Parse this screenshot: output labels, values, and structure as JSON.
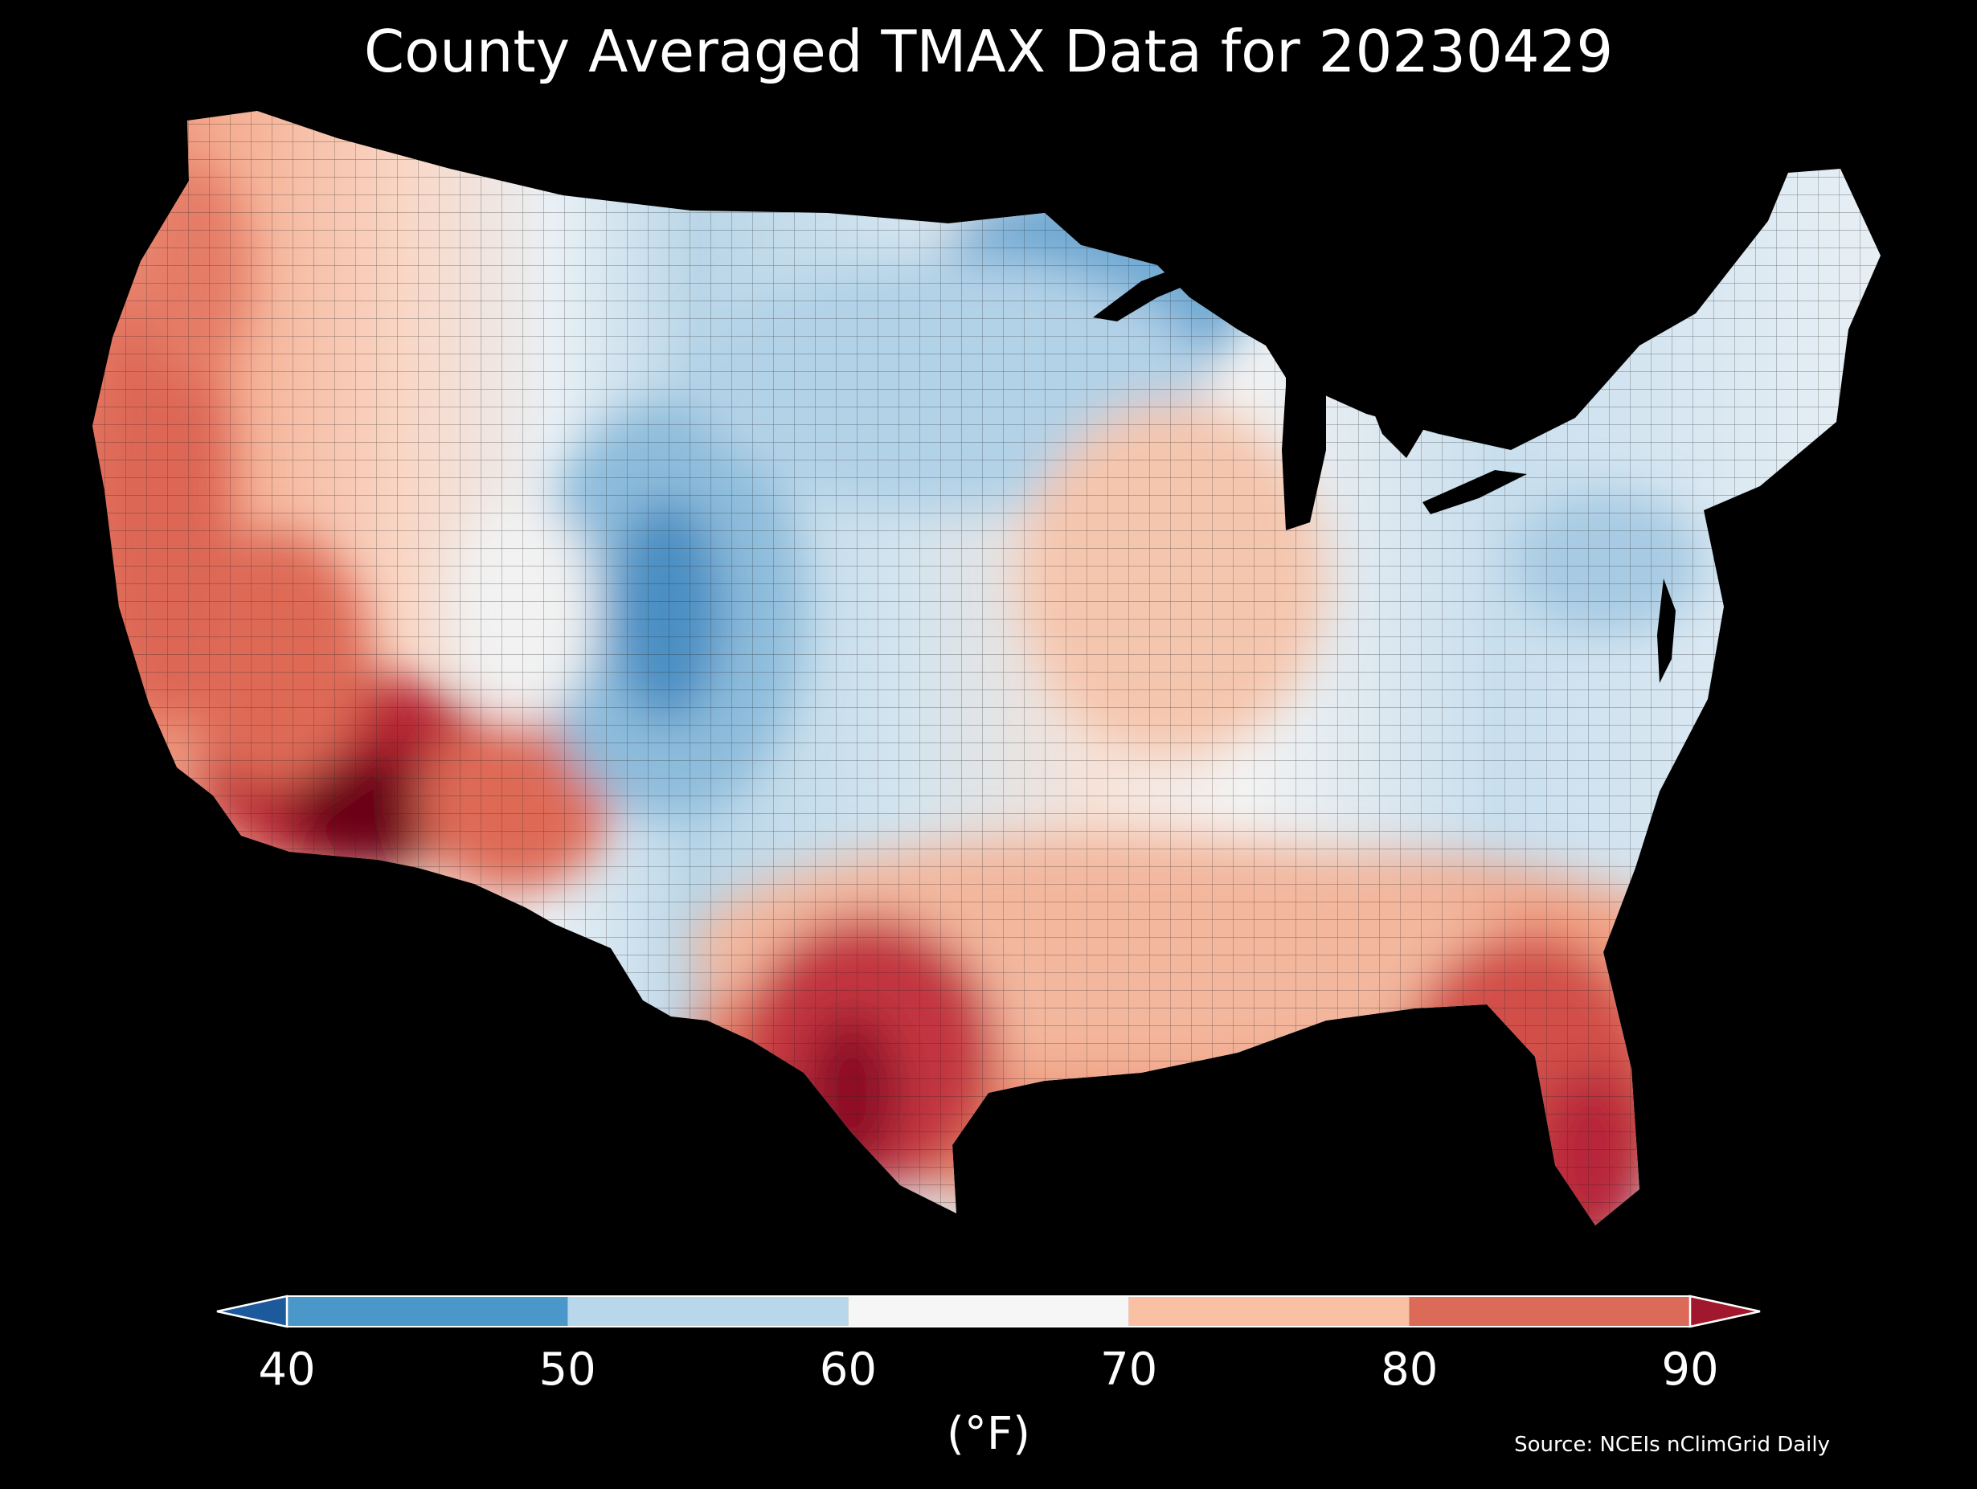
{
  "title": "County Averaged TMAX Data for 20230429",
  "colors": {
    "background": "#000000",
    "bins": [
      "#1c5a9b",
      "#4a98c9",
      "#b8d7ea",
      "#f6f6f6",
      "#f9c0a3",
      "#dc6a58",
      "#a1182e"
    ],
    "extreme_hot": "#6b0019"
  },
  "chart_data": {
    "type": "choropleth",
    "title": "County Averaged TMAX Data for 20230429",
    "variable": "TMAX",
    "date": "20230429",
    "colorbar": {
      "ticks": [
        40,
        50,
        60,
        70,
        80,
        90
      ],
      "tick_labels": [
        "40",
        "50",
        "60",
        "70",
        "80",
        "90"
      ],
      "range": [
        40,
        90
      ],
      "extend": "both",
      "label": "(°F)",
      "orientation": "horizontal",
      "placement": "bottom"
    },
    "regional_pattern": [
      {
        "region": "Pacific Coast",
        "level": "70-90"
      },
      {
        "region": "Southern Arizona / Southeast California deserts",
        "level": ">90"
      },
      {
        "region": "South Texas",
        "level": ">90"
      },
      {
        "region": "Southern Florida",
        "level": "80-90"
      },
      {
        "region": "Southeast / Gulf Coast",
        "level": "70-85"
      },
      {
        "region": "Central Colorado Rockies",
        "level": "40-50"
      },
      {
        "region": "Northern Minnesota / Lake Superior",
        "level": "45-55"
      },
      {
        "region": "Northern Plains / Upper Midwest",
        "level": "50-60"
      },
      {
        "region": "Mid-Atlantic / Pennsylvania",
        "level": "50-60"
      },
      {
        "region": "New England",
        "level": "55-65"
      }
    ]
  },
  "source": "Source: NCEIs nClimGrid Daily"
}
